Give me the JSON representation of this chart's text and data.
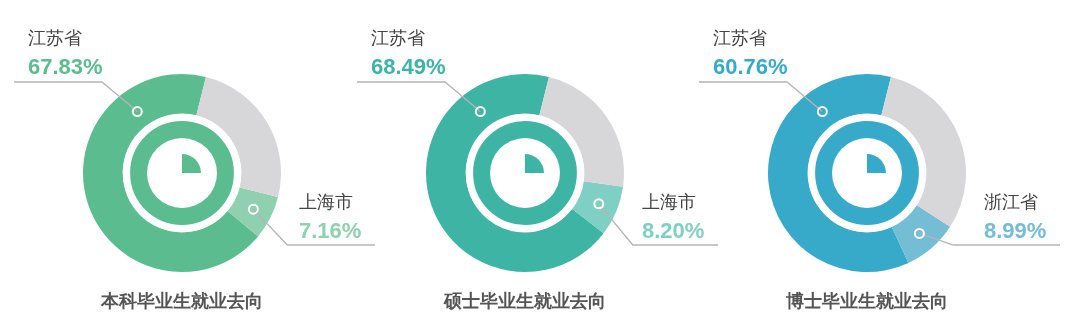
{
  "chart_data": [
    {
      "type": "donut",
      "title": "本科毕业生就业去向",
      "categories": [
        "江苏省",
        "上海市",
        null
      ],
      "values": [
        67.83,
        7.16,
        25.01
      ],
      "colors": [
        "#5bbd8f",
        "#8fd0b0",
        "#d7d7d9"
      ],
      "value_labels": [
        "67.83%",
        "7.16%",
        null
      ]
    },
    {
      "type": "donut",
      "title": "硕士毕业生就业去向",
      "categories": [
        "江苏省",
        "上海市",
        null
      ],
      "values": [
        68.49,
        8.2,
        23.31
      ],
      "colors": [
        "#3db4a4",
        "#80cfc4",
        "#d7d7d9"
      ],
      "value_labels": [
        "68.49%",
        "8.20%",
        null
      ]
    },
    {
      "type": "donut",
      "title": "博士毕业生就业去向",
      "categories": [
        "江苏省",
        "浙江省",
        null
      ],
      "values": [
        60.76,
        8.99,
        30.25
      ],
      "colors": [
        "#37a9c9",
        "#74bdd5",
        "#d7d7d9"
      ],
      "value_labels": [
        "60.76%",
        "8.99%",
        null
      ]
    }
  ]
}
